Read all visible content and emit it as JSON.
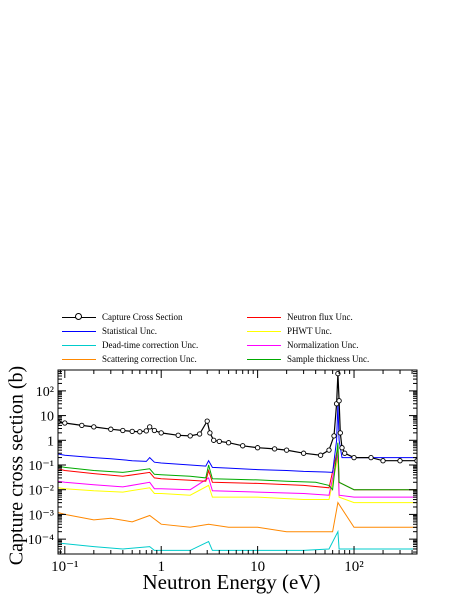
{
  "chart_data": {
    "type": "line",
    "title": "",
    "xlabel": "Neutron Energy (eV)",
    "ylabel": "Capture cross section (b)",
    "x_scale": "log",
    "y_scale": "log",
    "xlim": [
      0.085,
      450
    ],
    "ylim": [
      2.5e-05,
      700
    ],
    "x_ticks": [
      {
        "value": 0.1,
        "label": "10⁻¹"
      },
      {
        "value": 1,
        "label": "1"
      },
      {
        "value": 10,
        "label": "10"
      },
      {
        "value": 100,
        "label": "10²"
      }
    ],
    "y_ticks": [
      {
        "value": 0.0001,
        "label": "10⁻⁴"
      },
      {
        "value": 0.001,
        "label": "10⁻³"
      },
      {
        "value": 0.01,
        "label": "10⁻²"
      },
      {
        "value": 0.1,
        "label": "10⁻¹"
      },
      {
        "value": 1,
        "label": "1"
      },
      {
        "value": 10,
        "label": "10"
      },
      {
        "value": 100,
        "label": "10²"
      }
    ],
    "grid": false,
    "legend_position": "top",
    "series": [
      {
        "name": "Capture Cross Section",
        "color": "#000000",
        "marker": "open-circle",
        "x": [
          0.085,
          0.1,
          0.15,
          0.2,
          0.3,
          0.4,
          0.5,
          0.6,
          0.7,
          0.76,
          0.85,
          1.0,
          1.5,
          2.0,
          2.5,
          3.0,
          3.2,
          3.5,
          4.0,
          5.0,
          7.0,
          10.0,
          15.0,
          20.0,
          30.0,
          45.0,
          55.0,
          62.0,
          66.0,
          68.0,
          70.0,
          72.0,
          75.0,
          80.0,
          100.0,
          150.0,
          200.0,
          300.0,
          450.0
        ],
        "y": [
          5.5,
          5.0,
          4.0,
          3.5,
          2.8,
          2.5,
          2.3,
          2.2,
          2.4,
          3.5,
          2.5,
          2.0,
          1.6,
          1.5,
          1.8,
          6.0,
          2.0,
          1.0,
          0.9,
          0.8,
          0.6,
          0.5,
          0.45,
          0.4,
          0.3,
          0.25,
          0.4,
          1.5,
          30.0,
          500.0,
          40.0,
          2.0,
          0.5,
          0.3,
          0.2,
          0.2,
          0.15,
          0.15,
          0.15
        ]
      },
      {
        "name": "Statistical Unc.",
        "color": "#0000ff",
        "x": [
          0.085,
          0.1,
          0.2,
          0.3,
          0.5,
          0.7,
          0.76,
          0.85,
          1.0,
          2.0,
          2.9,
          3.1,
          3.4,
          5.0,
          10.0,
          20.0,
          30.0,
          50.0,
          60.0,
          66.0,
          68.0,
          70.0,
          75.0,
          100.0,
          450.0
        ],
        "y": [
          0.28,
          0.25,
          0.2,
          0.18,
          0.15,
          0.14,
          0.2,
          0.13,
          0.12,
          0.1,
          0.09,
          0.15,
          0.08,
          0.075,
          0.065,
          0.06,
          0.055,
          0.052,
          0.05,
          1.0,
          30.0,
          1.0,
          0.2,
          0.2,
          0.2
        ]
      },
      {
        "name": "Dead-time correction Unc.",
        "color": "#00cccc",
        "x": [
          0.085,
          0.2,
          0.4,
          0.76,
          0.85,
          1.0,
          2.0,
          3.1,
          3.4,
          10.0,
          30.0,
          55.0,
          68.0,
          70.0,
          100.0,
          450.0
        ],
        "y": [
          7e-05,
          5e-05,
          4e-05,
          5e-05,
          3.5e-05,
          3.5e-05,
          3.5e-05,
          8e-05,
          3.5e-05,
          3.5e-05,
          3.5e-05,
          4e-05,
          0.0002,
          4e-05,
          4e-05,
          4e-05
        ]
      },
      {
        "name": "Scattering correction Unc.",
        "color": "#ff8800",
        "x": [
          0.085,
          0.1,
          0.2,
          0.3,
          0.5,
          0.76,
          1.0,
          2.0,
          3.1,
          5.0,
          10.0,
          20.0,
          40.0,
          60.0,
          68.0,
          100.0,
          450.0
        ],
        "y": [
          0.0012,
          0.001,
          0.0006,
          0.0007,
          0.0005,
          0.0009,
          0.0004,
          0.0003,
          0.0004,
          0.0003,
          0.0003,
          0.0002,
          0.0002,
          0.0002,
          0.003,
          0.0003,
          0.0003
        ]
      },
      {
        "name": "Neutron flux Unc.",
        "color": "#ff0000",
        "x": [
          0.085,
          0.1,
          0.2,
          0.4,
          0.76,
          0.85,
          1.0,
          2.0,
          2.9,
          3.1,
          3.4,
          10.0,
          30.0,
          55.0,
          68.0,
          70.0,
          100.0,
          450.0
        ],
        "y": [
          0.07,
          0.06,
          0.045,
          0.035,
          0.05,
          0.03,
          0.028,
          0.024,
          0.022,
          0.06,
          0.02,
          0.018,
          0.015,
          0.012,
          0.5,
          0.02,
          0.01,
          0.01
        ]
      },
      {
        "name": "PHWT Unc.",
        "color": "#ffff00",
        "x": [
          0.085,
          0.1,
          0.2,
          0.4,
          0.76,
          0.85,
          1.0,
          2.0,
          3.1,
          3.4,
          10.0,
          30.0,
          55.0,
          68.0,
          70.0,
          100.0,
          450.0
        ],
        "y": [
          0.012,
          0.011,
          0.009,
          0.008,
          0.012,
          0.007,
          0.007,
          0.006,
          0.015,
          0.005,
          0.005,
          0.004,
          0.004,
          0.2,
          0.005,
          0.003,
          0.003
        ]
      },
      {
        "name": "Normalization Unc.",
        "color": "#ff00ff",
        "x": [
          0.085,
          0.1,
          0.2,
          0.4,
          0.76,
          0.85,
          1.0,
          2.0,
          3.1,
          3.4,
          10.0,
          30.0,
          55.0,
          68.0,
          70.0,
          100.0,
          450.0
        ],
        "y": [
          0.022,
          0.02,
          0.016,
          0.013,
          0.02,
          0.011,
          0.011,
          0.01,
          0.03,
          0.009,
          0.008,
          0.007,
          0.006,
          0.3,
          0.006,
          0.005,
          0.005
        ]
      },
      {
        "name": "Sample thickness Unc.",
        "color": "#00aa00",
        "x": [
          0.085,
          0.1,
          0.2,
          0.4,
          0.76,
          0.85,
          1.0,
          2.0,
          2.9,
          3.1,
          3.4,
          10.0,
          20.0,
          40.0,
          55.0,
          60.0,
          68.0,
          70.0,
          100.0,
          450.0
        ],
        "y": [
          0.09,
          0.08,
          0.06,
          0.05,
          0.07,
          0.042,
          0.04,
          0.035,
          0.03,
          0.1,
          0.028,
          0.025,
          0.022,
          0.02,
          0.015,
          0.01,
          0.8,
          0.02,
          0.01,
          0.01
        ]
      }
    ]
  }
}
